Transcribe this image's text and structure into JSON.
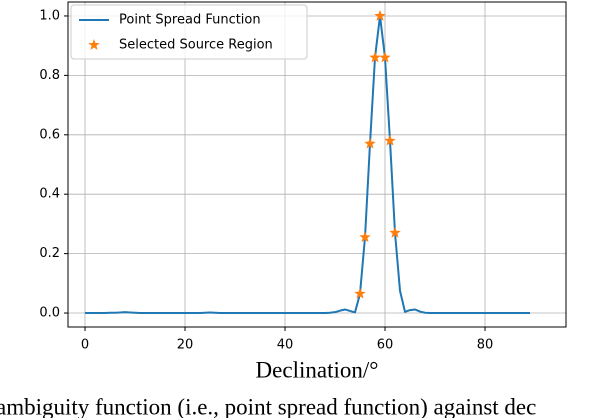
{
  "chart_data": {
    "type": "line",
    "xlabel": "Declination/°",
    "caption": "ambiguity function (i.e., point spread function) against dec",
    "series": [
      {
        "name": "Point Spread Function",
        "color": "#1f77b4",
        "marker": "none",
        "x": [
          0,
          1,
          2,
          3,
          4,
          5,
          6,
          7,
          8,
          9,
          10,
          11,
          12,
          13,
          14,
          15,
          16,
          17,
          18,
          19,
          20,
          21,
          22,
          23,
          24,
          25,
          26,
          27,
          28,
          29,
          30,
          31,
          32,
          33,
          34,
          35,
          36,
          37,
          38,
          39,
          40,
          41,
          42,
          43,
          44,
          45,
          46,
          47,
          48,
          49,
          50,
          51,
          52,
          53,
          54,
          55,
          56,
          57,
          58,
          59,
          60,
          61,
          62,
          63,
          64,
          65,
          66,
          67,
          68,
          69,
          70,
          71,
          72,
          73,
          74,
          75,
          76,
          77,
          78,
          79,
          80,
          81,
          82,
          83,
          84,
          85,
          86,
          87,
          88,
          89
        ],
        "values": [
          0,
          0,
          0,
          0,
          0,
          0.001,
          0.001,
          0.002,
          0.003,
          0.002,
          0.001,
          0,
          0,
          0,
          0,
          0,
          0,
          0,
          0,
          0,
          0,
          0,
          0,
          0,
          0.001,
          0.002,
          0.001,
          0,
          0,
          0,
          0,
          0,
          0,
          0,
          0,
          0,
          0,
          0,
          0,
          0,
          0,
          0,
          0,
          0,
          0,
          0,
          0,
          0,
          0,
          0.001,
          0.003,
          0.008,
          0.012,
          0.007,
          0.002,
          0.065,
          0.255,
          0.57,
          0.86,
          1.0,
          0.86,
          0.58,
          0.27,
          0.075,
          0.004,
          0.01,
          0.012,
          0.005,
          0.001,
          0,
          0,
          0,
          0,
          0,
          0,
          0,
          0,
          0,
          0,
          0,
          0,
          0,
          0,
          0,
          0,
          0,
          0,
          0,
          0,
          0
        ]
      },
      {
        "name": "Selected Source Region",
        "color": "#ff7f0e",
        "marker": "star",
        "x": [
          55,
          56,
          57,
          58,
          59,
          60,
          61,
          62
        ],
        "values": [
          0.065,
          0.255,
          0.57,
          0.86,
          1.0,
          0.86,
          0.58,
          0.27
        ]
      }
    ],
    "xlim": [
      -3.4,
      96.2
    ],
    "ylim": [
      -0.047,
      1.047
    ],
    "xticks": [
      0,
      20,
      40,
      60,
      80
    ],
    "yticks": [
      {
        "value": 0,
        "label": "0.0"
      },
      0.2,
      0.4,
      0.6,
      0.8,
      {
        "value": 1,
        "label": "1.0"
      }
    ],
    "grid": true,
    "legend": "upper left"
  }
}
